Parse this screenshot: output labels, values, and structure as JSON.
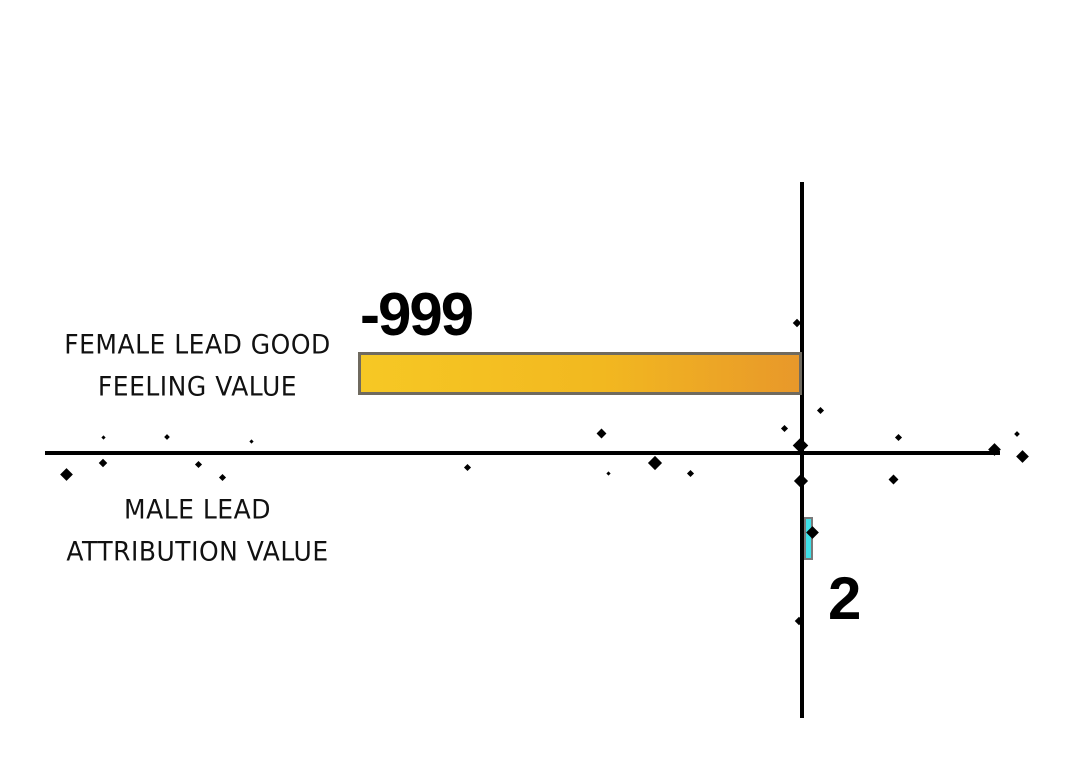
{
  "chart_data": {
    "type": "bar",
    "orientation": "horizontal",
    "categories": [
      "FEMALE LEAD GOOD FEELING VALUE",
      "MALE LEAD ATTRIBUTION VALUE"
    ],
    "category_lines": [
      [
        "FEMALE LEAD GOOD",
        "FEELING VALUE"
      ],
      [
        "MALE LEAD",
        "ATTRIBUTION VALUE"
      ]
    ],
    "values": [
      -999,
      2
    ],
    "data_labels": [
      "-999",
      "2"
    ],
    "colors": [
      "#f2b820",
      "#3ee0e8"
    ],
    "grid": false,
    "title": "",
    "xlabel": "",
    "ylabel": ""
  }
}
